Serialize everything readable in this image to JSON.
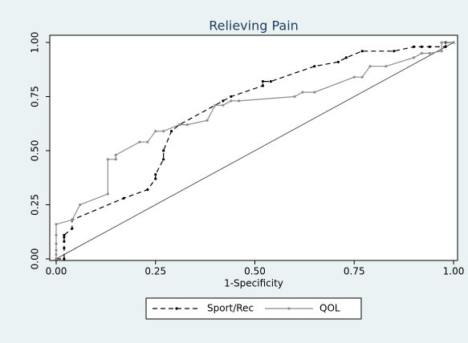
{
  "chart_data": {
    "type": "line",
    "title": "Relieving Pain",
    "xlabel": "1-Specificity",
    "xlim": [
      0,
      1
    ],
    "ylim": [
      0,
      1
    ],
    "xticks": [
      {
        "value": 0,
        "label": "0.00"
      },
      {
        "value": 0.25,
        "label": "0.25"
      },
      {
        "value": 0.5,
        "label": "0.50"
      },
      {
        "value": 0.75,
        "label": "0.75"
      },
      {
        "value": 1,
        "label": "1.00"
      }
    ],
    "yticks": [
      {
        "value": 0,
        "label": "0.00"
      },
      {
        "value": 0.25,
        "label": "0.25"
      },
      {
        "value": 0.5,
        "label": "0.50"
      },
      {
        "value": 0.75,
        "label": "0.75"
      },
      {
        "value": 1,
        "label": "1.00"
      }
    ],
    "series": [
      {
        "name": "Sport/Rec",
        "color": "#000000",
        "dash": true,
        "x": [
          0,
          0.02,
          0.02,
          0.02,
          0.02,
          0.02,
          0.04,
          0.04,
          0.17,
          0.23,
          0.25,
          0.25,
          0.27,
          0.27,
          0.29,
          0.31,
          0.42,
          0.44,
          0.52,
          0.52,
          0.54,
          0.65,
          0.71,
          0.73,
          0.77,
          0.85,
          0.9,
          0.92,
          0.94,
          0.98,
          0.98,
          1
        ],
        "values": [
          0,
          0,
          0.05,
          0.08,
          0.1,
          0.11,
          0.14,
          0.18,
          0.28,
          0.32,
          0.37,
          0.39,
          0.46,
          0.5,
          0.59,
          0.62,
          0.73,
          0.75,
          0.8,
          0.82,
          0.82,
          0.89,
          0.91,
          0.93,
          0.96,
          0.96,
          0.98,
          0.98,
          0.98,
          0.98,
          1,
          1
        ]
      },
      {
        "name": "QOL",
        "color": "#8c8c8c",
        "dash": false,
        "x": [
          0,
          0,
          0,
          0,
          0,
          0,
          0.04,
          0.06,
          0.13,
          0.13,
          0.15,
          0.15,
          0.21,
          0.23,
          0.25,
          0.27,
          0.31,
          0.33,
          0.38,
          0.4,
          0.42,
          0.44,
          0.46,
          0.6,
          0.62,
          0.65,
          0.75,
          0.77,
          0.79,
          0.83,
          0.9,
          0.92,
          0.94,
          0.97,
          0.97,
          1
        ],
        "values": [
          0,
          0.02,
          0.04,
          0.07,
          0.11,
          0.16,
          0.18,
          0.25,
          0.3,
          0.46,
          0.46,
          0.48,
          0.54,
          0.54,
          0.59,
          0.59,
          0.62,
          0.62,
          0.64,
          0.71,
          0.71,
          0.73,
          0.73,
          0.75,
          0.77,
          0.77,
          0.84,
          0.84,
          0.89,
          0.89,
          0.93,
          0.95,
          0.95,
          0.96,
          1,
          1
        ]
      }
    ]
  }
}
